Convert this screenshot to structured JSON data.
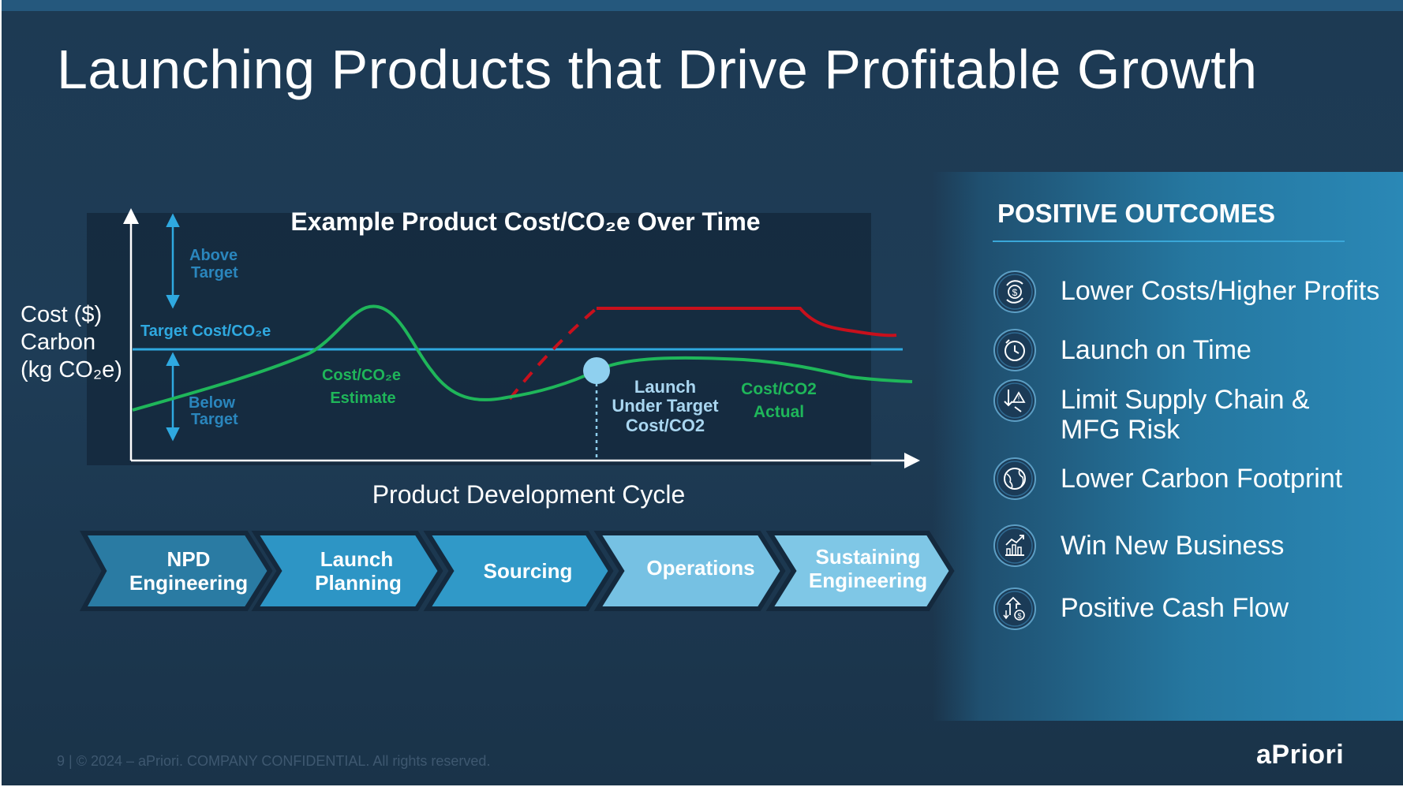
{
  "slide": {
    "title": "Launching Products that Drive Profitable Growth",
    "footer": "9  |  © 2024 – aPriori. COMPANY CONFIDENTIAL. All rights reserved.",
    "logo": "aPriori"
  },
  "chart": {
    "title": "Example Product Cost/CO₂e Over Time",
    "y_axis_label": [
      "Cost ($)",
      "Carbon",
      "(kg CO₂e)"
    ],
    "x_axis_label": "Product Development Cycle",
    "target_label": "Target Cost/CO₂e",
    "above_target": [
      "Above",
      "Target"
    ],
    "below_target": [
      "Below",
      "Target"
    ],
    "estimate_label": [
      "Cost/CO₂e",
      "Estimate"
    ],
    "launch_label": [
      "Launch",
      "Under Target",
      "Cost/CO2"
    ],
    "actual_label": [
      "Cost/CO2",
      "Actual"
    ]
  },
  "phases": [
    {
      "label": [
        "NPD",
        "Engineering"
      ],
      "color": "#2a7ba3"
    },
    {
      "label": [
        "Launch",
        "Planning"
      ],
      "color": "#2d95c5"
    },
    {
      "label": [
        "Sourcing"
      ],
      "color": "#3099c8"
    },
    {
      "label": [
        "Operations"
      ],
      "color": "#76c1e3"
    },
    {
      "label": [
        "Sustaining",
        "Engineering"
      ],
      "color": "#7fc7e6"
    }
  ],
  "outcomes": {
    "heading": "POSITIVE OUTCOMES",
    "items": [
      {
        "label": "Lower Costs/Higher Profits",
        "icon": "money-cycle-icon"
      },
      {
        "label": "Launch on Time",
        "icon": "clock-icon"
      },
      {
        "label": "Limit Supply Chain & MFG Risk",
        "icon": "supply-chain-icon"
      },
      {
        "label": "Lower Carbon Footprint",
        "icon": "globe-icon"
      },
      {
        "label": "Win New Business",
        "icon": "growth-chart-icon"
      },
      {
        "label": "Positive Cash Flow",
        "icon": "cash-flow-icon"
      }
    ]
  },
  "colors": {
    "target_line": "#2fa9e0",
    "estimate_curve": "#1fb65a",
    "overrun_curve": "#c8101c",
    "launch_marker": "#8fd0ef",
    "axis": "#ffffff"
  }
}
